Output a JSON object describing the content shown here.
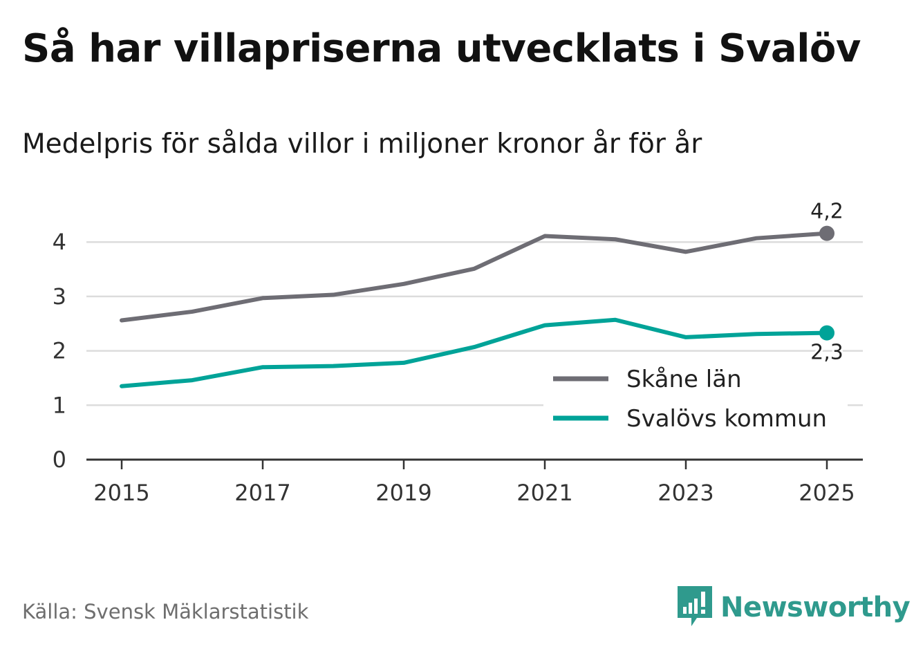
{
  "title": "Så har villapriserna utvecklats i Svalöv",
  "subtitle": "Medelpris för sålda villor i miljoner kronor år för år",
  "source": "Källa: Svensk Mäklarstatistik",
  "brand": {
    "name": "Newsworthy",
    "icon": "newsworthy-logo-icon",
    "color": "#2f9a8d"
  },
  "chart_data": {
    "type": "line",
    "title": "Så har villapriserna utvecklats i Svalöv",
    "subtitle": "Medelpris för sålda villor i miljoner kronor år för år",
    "xlabel": "",
    "ylabel": "",
    "x": [
      2015,
      2016,
      2017,
      2018,
      2019,
      2020,
      2021,
      2022,
      2023,
      2024,
      2025
    ],
    "x_ticks": [
      "2015",
      "2017",
      "2019",
      "2021",
      "2023",
      "2025"
    ],
    "y_ticks": [
      "0",
      "1",
      "2",
      "3",
      "4"
    ],
    "ylim": [
      0,
      4.5
    ],
    "xlim": [
      2014.5,
      2025.5
    ],
    "grid": true,
    "legend_position": "bottom-right",
    "series": [
      {
        "name": "Skåne län",
        "color": "#6e6d74",
        "values": [
          2.56,
          2.72,
          2.97,
          3.03,
          3.23,
          3.51,
          4.11,
          4.05,
          3.82,
          4.07,
          4.16
        ],
        "end_label": "4,2"
      },
      {
        "name": "Svalövs kommun",
        "color": "#00a398",
        "values": [
          1.35,
          1.46,
          1.7,
          1.72,
          1.78,
          2.07,
          2.47,
          2.57,
          2.25,
          2.31,
          2.33
        ],
        "end_label": "2,3"
      }
    ]
  }
}
